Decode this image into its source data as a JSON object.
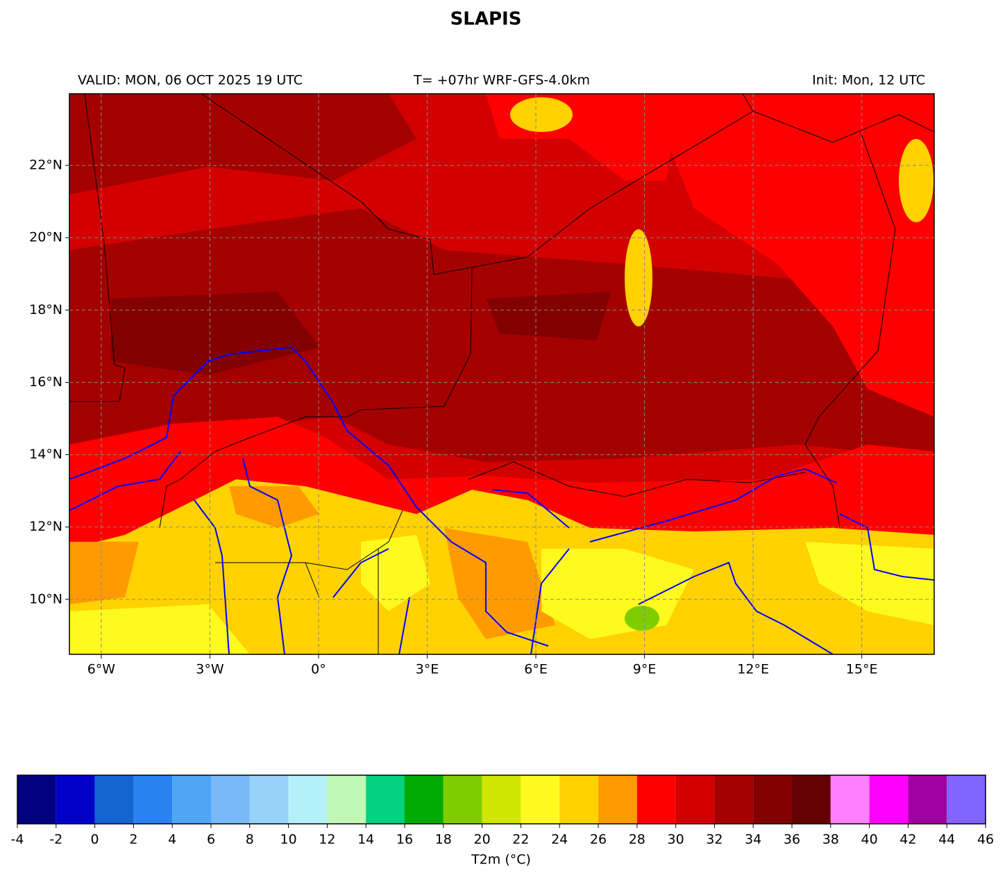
{
  "title": "SLAPIS",
  "header": {
    "valid": "VALID: MON, 06 OCT 2025 19 UTC",
    "run": "T= +07hr WRF-GFS-4.0km",
    "init": "Init: Mon, 12 UTC"
  },
  "map": {
    "xlim": [
      -6.88,
      17
    ],
    "ylim": [
      8.48,
      23.98
    ],
    "xticks": [
      {
        "value": -6,
        "label": "6°W"
      },
      {
        "value": -3,
        "label": "3°W"
      },
      {
        "value": 0,
        "label": "0°"
      },
      {
        "value": 3,
        "label": "3°E"
      },
      {
        "value": 6,
        "label": "6°E"
      },
      {
        "value": 9,
        "label": "9°E"
      },
      {
        "value": 12,
        "label": "12°E"
      },
      {
        "value": 15,
        "label": "15°E"
      }
    ],
    "yticks": [
      {
        "value": 10,
        "label": "10°N"
      },
      {
        "value": 12,
        "label": "12°N"
      },
      {
        "value": 14,
        "label": "14°N"
      },
      {
        "value": 16,
        "label": "16°N"
      },
      {
        "value": 18,
        "label": "18°N"
      },
      {
        "value": 20,
        "label": "20°N"
      },
      {
        "value": 22,
        "label": "22°N"
      }
    ],
    "grid": true
  },
  "colorbar": {
    "label": "T2m (°C)",
    "bounds": [
      -4,
      -2,
      0,
      2,
      4,
      6,
      8,
      10,
      12,
      14,
      16,
      18,
      20,
      22,
      24,
      26,
      28,
      30,
      32,
      34,
      36,
      38,
      40,
      42,
      44,
      46
    ],
    "colors": [
      "#000080",
      "#0000c8",
      "#1464d2",
      "#2882f0",
      "#50a5f5",
      "#78b9fa",
      "#96d2fa",
      "#b4f0fa",
      "#c1f7b7",
      "#00d27d",
      "#00aa00",
      "#7fcd00",
      "#cfe600",
      "#fffa1e",
      "#ffd200",
      "#ff9b00",
      "#ff0000",
      "#d20000",
      "#a50000",
      "#820000",
      "#640000",
      "#ff80ff",
      "#ff00ff",
      "#a000a0",
      "#8264ff"
    ]
  }
}
